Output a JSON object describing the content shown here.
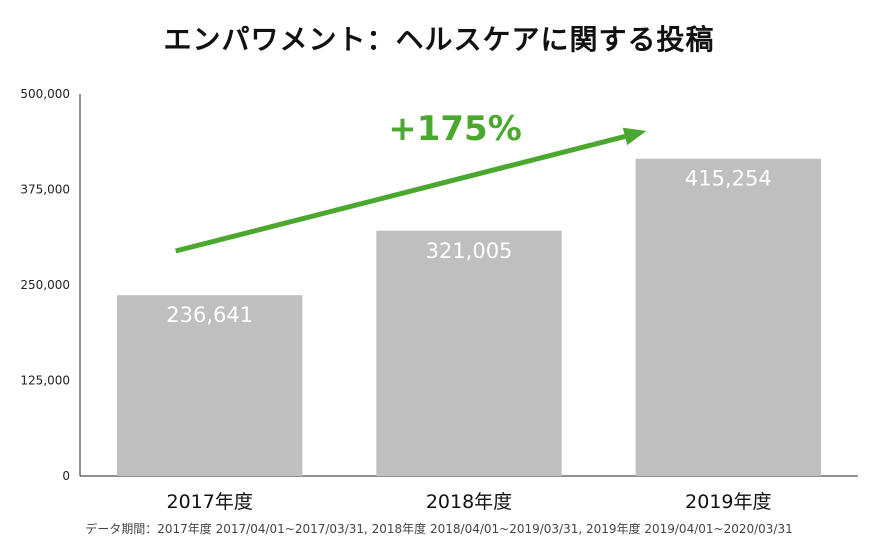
{
  "chart_data": {
    "type": "bar",
    "title": "エンパワメント：ヘルスケアに関する投稿",
    "categories": [
      "2017年度",
      "2018年度",
      "2019年度"
    ],
    "values": [
      236641,
      321005,
      415254
    ],
    "value_labels": [
      "236,641",
      "321,005",
      "415,254"
    ],
    "ylim": [
      0,
      500000
    ],
    "yticks": [
      0,
      125000,
      250000,
      375000,
      500000
    ],
    "ytick_labels": [
      "0",
      "125,000",
      "250,000",
      "375,000",
      "500,000"
    ],
    "grid": false,
    "legend": "none",
    "annotation": "+175%",
    "footnote": "データ期間：2017年度 2017/04/01~2017/03/31, 2018年度 2018/04/01~2019/03/31, 2019年度 2019/04/01~2020/03/31"
  },
  "colors": {
    "bar": "#bfbfbf",
    "growth": "#4aa82f",
    "axis": "#222222"
  }
}
